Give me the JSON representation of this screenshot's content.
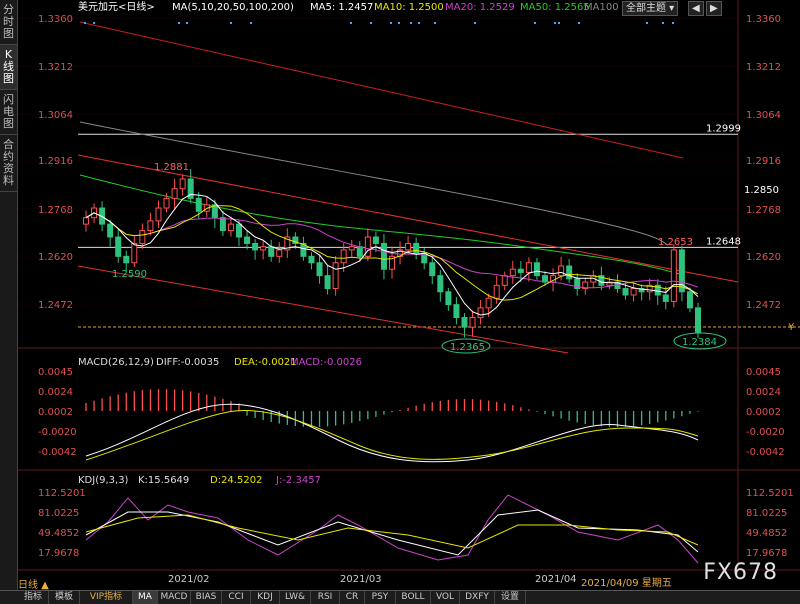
{
  "side_tabs": [
    "分时图",
    "K线图",
    "闪电图",
    "合约资料"
  ],
  "header": {
    "symbol": "美元加元<日线>",
    "ma_label": "MA(5,10,20,50,100,200)",
    "ma5": "MA5: 1.2457",
    "ma10": "MA10: 1.2500",
    "ma20": "MA20: 1.2529",
    "ma50": "MA50: 1.2565",
    "ma100": "MA100",
    "main_btn": "全部主题"
  },
  "price_axis": [
    "1.3360",
    "1.3212",
    "1.3064",
    "1.2916",
    "1.2768",
    "1.2620",
    "1.2472"
  ],
  "right_labels": {
    "r2850": "1.2850",
    "r2999": "1.2999",
    "r2648": "1.2648"
  },
  "annotations": {
    "high": "1.2881",
    "low1": "1.2590",
    "low2": "1.2365",
    "last": "1.2384",
    "peak": "1.2653"
  },
  "macd": {
    "title": "MACD(26,12,9)",
    "diff": "DIFF:-0.0035",
    "dea": "DEA:-0.0021",
    "macd": "MACD:-0.0026",
    "axis": [
      "0.0045",
      "0.0024",
      "0.0002",
      "-0.0020",
      "-0.0042"
    ]
  },
  "kdj": {
    "title": "KDJ(9,3,3)",
    "k": "K:15.5649",
    "d": "D:24.5202",
    "j": "J:-2.3457",
    "axis": [
      "112.5201",
      "81.0225",
      "49.4852",
      "17.9678"
    ]
  },
  "dates": [
    "2021/02",
    "2021/03",
    "2021/04"
  ],
  "current_date": "2021/04/09 星期五",
  "period": "日线",
  "bottom_tabs": [
    "指标",
    "模板",
    "VIP指标",
    "MA",
    "MACD",
    "BIAS",
    "CCI",
    "KDJ",
    "LW&",
    "RSI",
    "CR",
    "PSY",
    "BOLL",
    "VOL",
    "DXFY",
    "设置"
  ],
  "watermark": "FX678",
  "colors": {
    "up": "#ff5050",
    "down": "#2ec27e",
    "ma5": "#ffffff",
    "ma10": "#e6e600",
    "ma20": "#cc44cc",
    "ma50": "#22cc22",
    "ma100": "#888888",
    "ma200": "#dd2222"
  }
}
